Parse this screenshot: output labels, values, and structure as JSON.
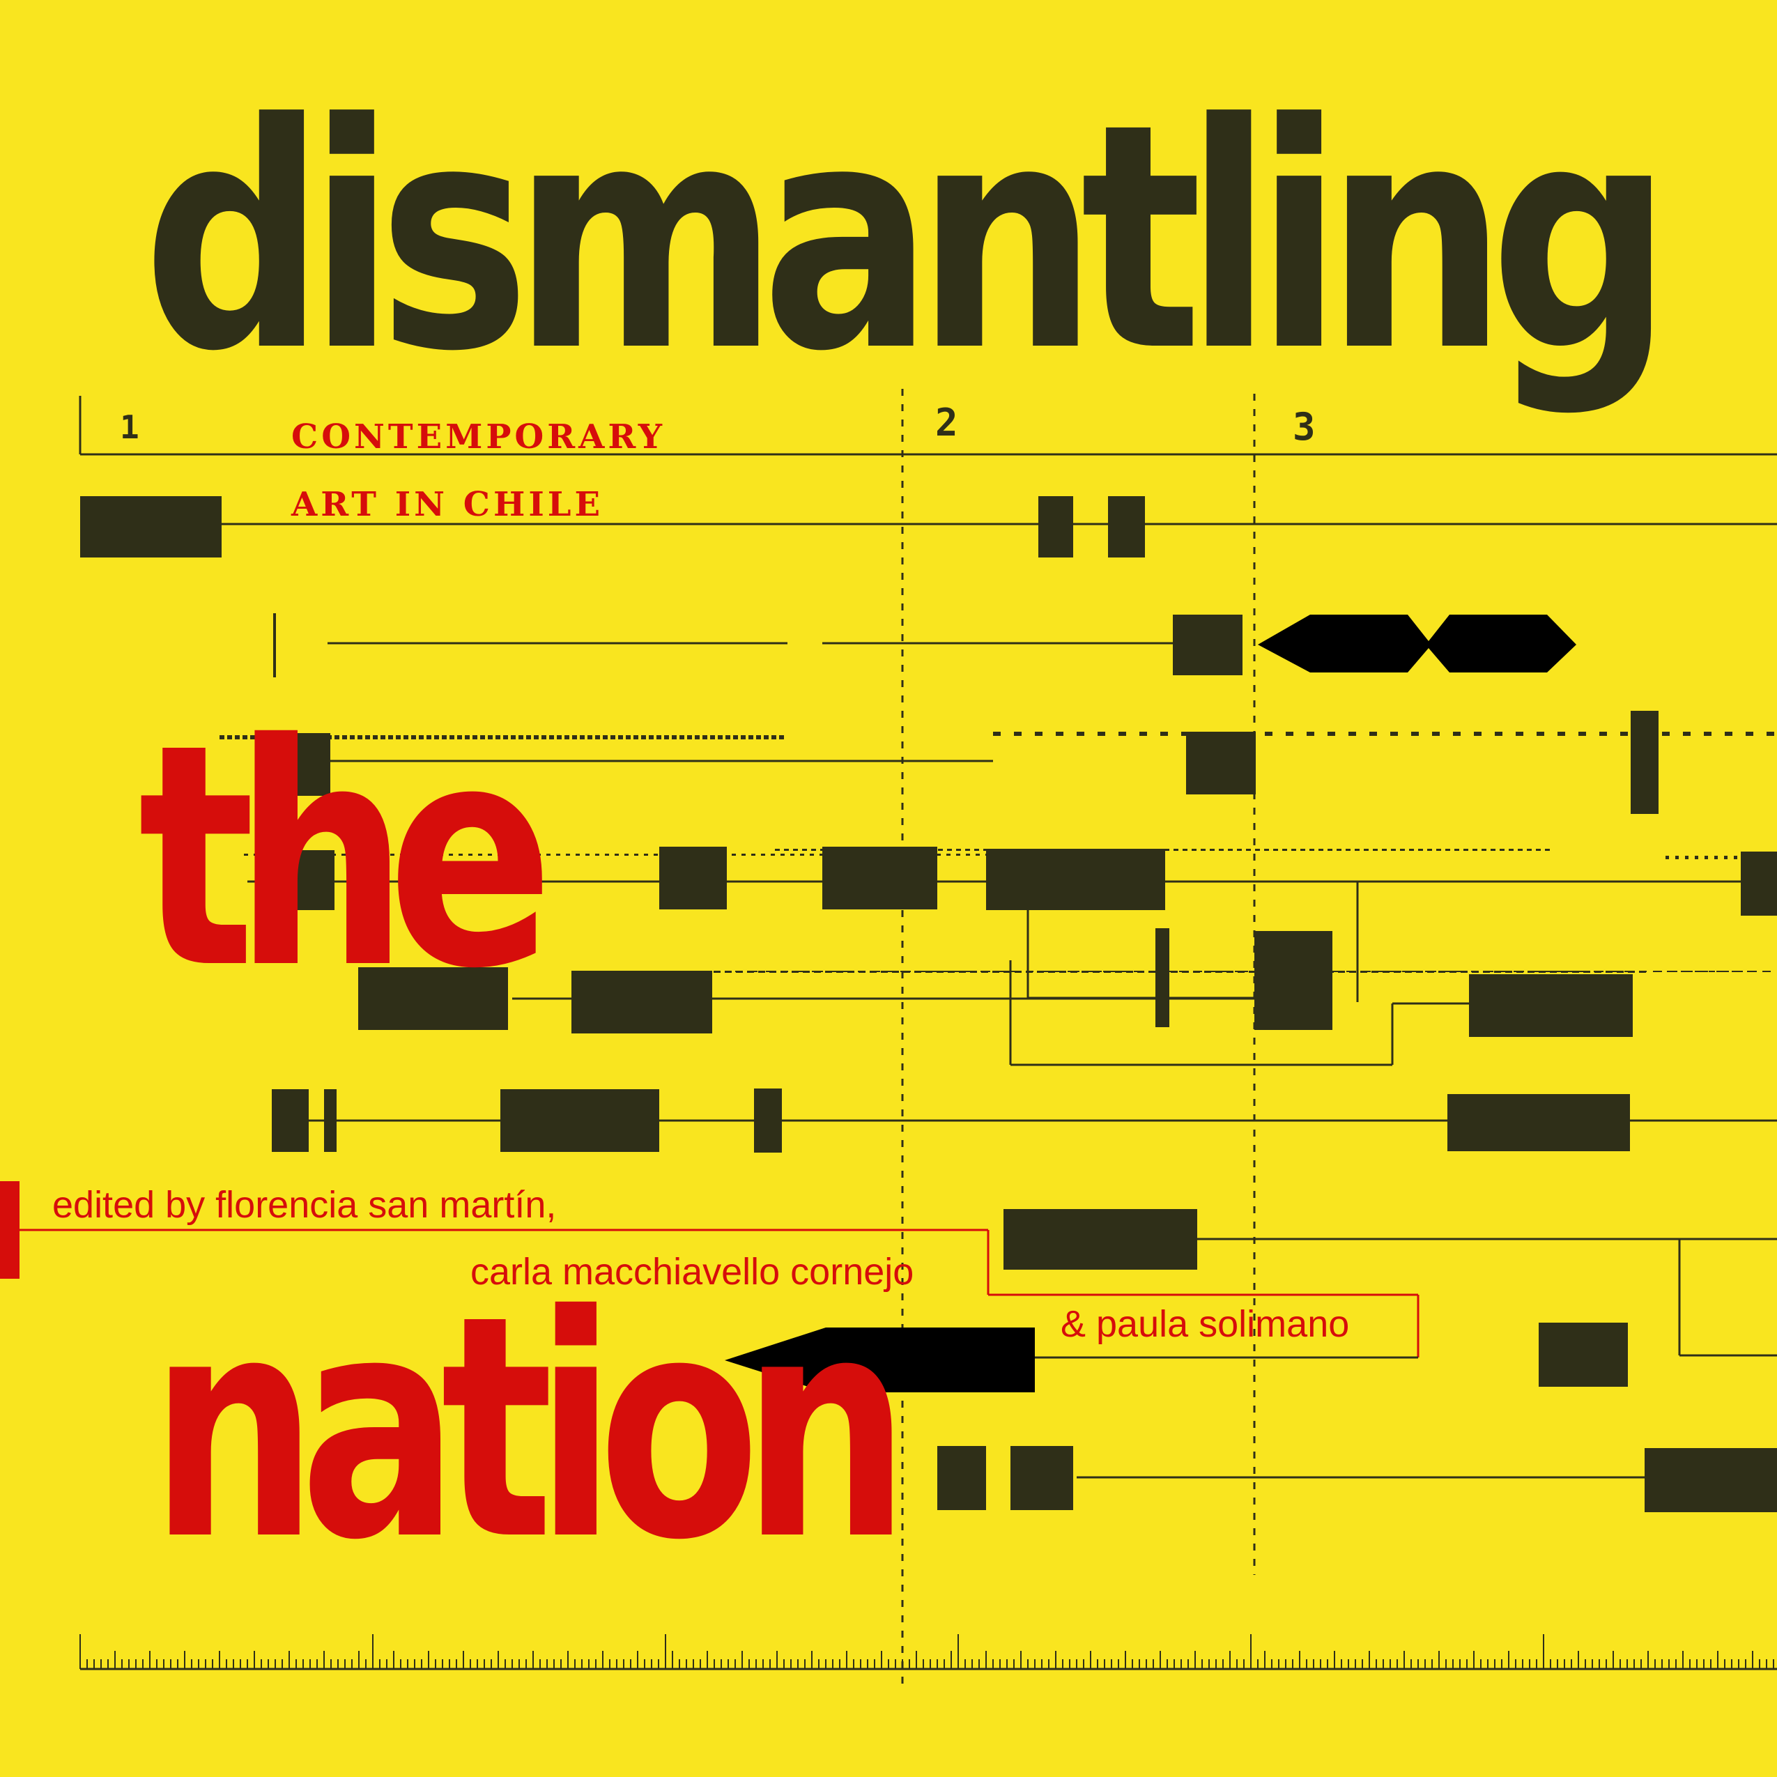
{
  "cover": {
    "title": {
      "word1": "dismantling",
      "word2": "the",
      "word3": "nation"
    },
    "subtitle": {
      "line1": "CONTEMPORARY",
      "line2": "ART IN CHILE"
    },
    "staff_markers": [
      "1",
      "2",
      "3"
    ],
    "editors": {
      "line1": "edited by florencia san martín,",
      "line2": "carla macchiavello cornejo",
      "line3": "& paula solimano"
    }
  },
  "colors": {
    "background": "#f9e51f",
    "ink": "#2f2f18",
    "accent_red": "#d60d0b"
  }
}
